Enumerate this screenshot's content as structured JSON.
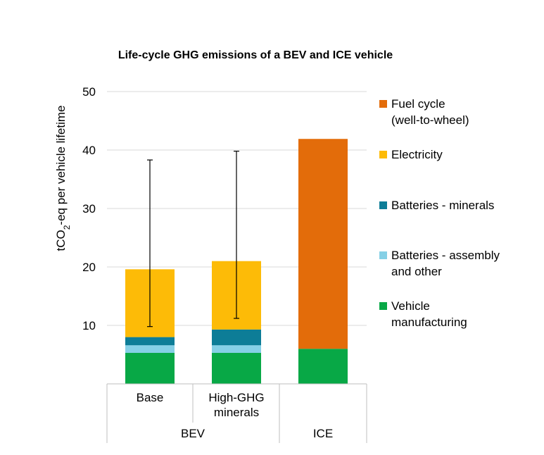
{
  "chart_data": {
    "type": "bar",
    "stacked": true,
    "title": "Life-cycle GHG emissions of a BEV and ICE vehicle",
    "ylabel_parts": [
      "tCO",
      "2",
      "-eq per vehicle lifetime"
    ],
    "ylim": [
      0,
      50
    ],
    "yticks": [
      10,
      20,
      30,
      40,
      50
    ],
    "grid": true,
    "legend_position": "right",
    "categories": [
      {
        "label": [
          "Base"
        ],
        "group": "BEV"
      },
      {
        "label": [
          "High-GHG",
          "minerals"
        ],
        "group": "BEV"
      },
      {
        "label": [
          ""
        ],
        "group": "ICE"
      }
    ],
    "groups": [
      "BEV",
      "ICE"
    ],
    "series": [
      {
        "name": "Vehicle manufacturing",
        "legend_lines": [
          "Vehicle",
          "manufacturing"
        ],
        "color": "#08a846",
        "values": [
          5.3,
          5.3,
          6.0
        ]
      },
      {
        "name": "Batteries - assembly and other",
        "legend_lines": [
          "Batteries - assembly",
          "and other"
        ],
        "color": "#85d0e6",
        "values": [
          1.3,
          1.3,
          0
        ]
      },
      {
        "name": "Batteries - minerals",
        "legend_lines": [
          "Batteries - minerals"
        ],
        "color": "#0d7d97",
        "values": [
          1.4,
          2.7,
          0
        ]
      },
      {
        "name": "Electricity",
        "legend_lines": [
          "Electricity"
        ],
        "color": "#fdbb07",
        "values": [
          11.6,
          11.7,
          0
        ]
      },
      {
        "name": "Fuel cycle (well-to-wheel)",
        "legend_lines": [
          "Fuel cycle",
          "(well-to-wheel)"
        ],
        "color": "#e36c0a",
        "values": [
          0,
          0,
          35.9
        ]
      }
    ],
    "error_bars": [
      {
        "low": 9.8,
        "high": 38.3
      },
      {
        "low": 11.2,
        "high": 39.8
      },
      null
    ]
  }
}
